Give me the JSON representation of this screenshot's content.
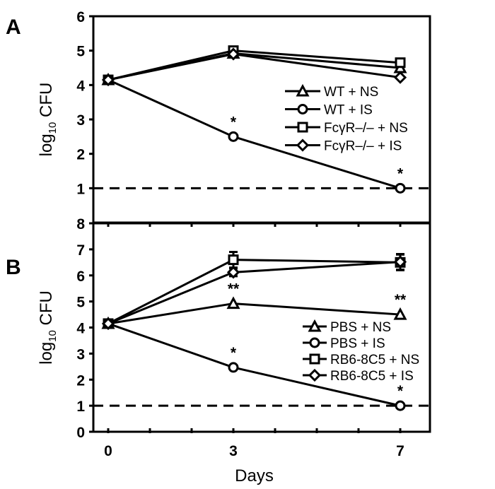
{
  "chart_data": [
    {
      "type": "line",
      "panel_label": "A",
      "ylabel": "log10 CFU",
      "ylabel_parts": {
        "base": "log",
        "sub": "10",
        "rest": " CFU"
      },
      "xlabel": "",
      "x": [
        0,
        3,
        7
      ],
      "ylim": [
        0,
        6
      ],
      "yticks": [
        "1",
        "2",
        "3",
        "4",
        "5",
        "6"
      ],
      "reference_line": {
        "y": 1,
        "style": "dashed"
      },
      "grid": false,
      "legend_placement": "center-right",
      "series": [
        {
          "name": "WT + NS",
          "marker": "triangle",
          "values": [
            4.15,
            4.92,
            4.5
          ]
        },
        {
          "name": "WT + IS",
          "marker": "circle",
          "values": [
            4.15,
            2.5,
            1.0
          ]
        },
        {
          "name": "FcγR–/– + NS",
          "marker": "square",
          "values": [
            4.15,
            5.0,
            4.65
          ]
        },
        {
          "name": "FcγR–/– + IS",
          "marker": "diamond",
          "values": [
            4.15,
            4.9,
            4.22
          ]
        }
      ],
      "annotations": [
        {
          "text": "*",
          "x": 3,
          "y": 2.5
        },
        {
          "text": "*",
          "x": 7,
          "y": 1.0
        }
      ]
    },
    {
      "type": "line",
      "panel_label": "B",
      "ylabel": "log10 CFU",
      "ylabel_parts": {
        "base": "log",
        "sub": "10",
        "rest": " CFU"
      },
      "xlabel": "Days",
      "x": [
        0,
        3,
        7
      ],
      "xticks": [
        "0",
        "3",
        "7"
      ],
      "ylim": [
        0,
        8
      ],
      "yticks": [
        "0",
        "1",
        "2",
        "3",
        "4",
        "5",
        "6",
        "7",
        "8"
      ],
      "reference_line": {
        "y": 1,
        "style": "dashed"
      },
      "grid": false,
      "legend_placement": "lower-right",
      "series": [
        {
          "name": "PBS + NS",
          "marker": "triangle",
          "values": [
            4.15,
            4.92,
            4.5
          ]
        },
        {
          "name": "PBS + IS",
          "marker": "circle",
          "values": [
            4.15,
            2.47,
            1.0
          ]
        },
        {
          "name": "RB6-8C5 + NS",
          "marker": "square",
          "values": [
            4.15,
            6.6,
            6.5
          ],
          "errors": [
            0,
            0.3,
            0.3
          ]
        },
        {
          "name": "RB6-8C5 + IS",
          "marker": "diamond",
          "values": [
            4.15,
            6.12,
            6.52
          ],
          "errors": [
            0,
            0.15,
            0.3
          ]
        }
      ],
      "annotations": [
        {
          "text": "**",
          "x": 3,
          "y": 4.92
        },
        {
          "text": "**",
          "x": 7,
          "y": 4.5
        },
        {
          "text": "*",
          "x": 3,
          "y": 2.47
        },
        {
          "text": "*",
          "x": 7,
          "y": 1.0
        }
      ]
    }
  ]
}
